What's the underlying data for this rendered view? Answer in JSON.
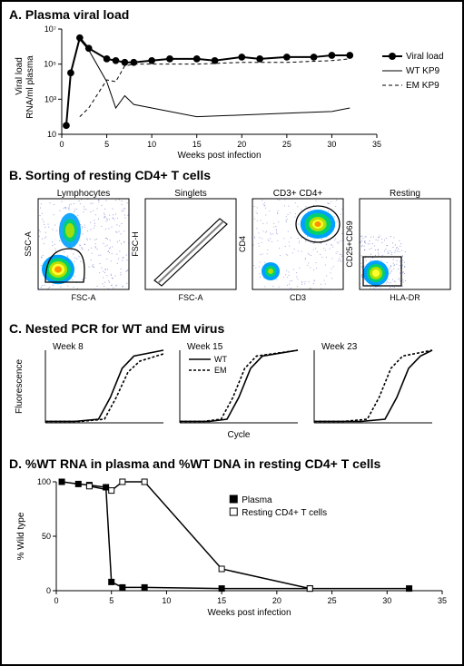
{
  "panelA": {
    "title": "A. Plasma viral load",
    "ylabel": "Viral load\nRNA/ml plasma",
    "xlabel": "Weeks post infection",
    "type": "line",
    "xlim": [
      0,
      35
    ],
    "ylim": [
      1,
      7
    ],
    "xtick_step": 5,
    "yticks": [
      1,
      3,
      5,
      7
    ],
    "ytick_labels": [
      "10",
      "10³",
      "10⁵",
      "10⁷"
    ],
    "background_color": "#ffffff",
    "axis_color": "#000000",
    "series": [
      {
        "name": "Viral load",
        "marker": "circle-filled",
        "marker_size": 5,
        "color": "#000000",
        "line_width": 2,
        "dash": "solid",
        "x": [
          0.5,
          1,
          2,
          3,
          5,
          6,
          7,
          8,
          10,
          12,
          15,
          17,
          20,
          22,
          25,
          28,
          30,
          32
        ],
        "y": [
          1.5,
          4.5,
          6.5,
          5.9,
          5.3,
          5.2,
          5.1,
          5.1,
          5.2,
          5.3,
          5.3,
          5.2,
          5.4,
          5.3,
          5.4,
          5.4,
          5.5,
          5.5
        ]
      },
      {
        "name": "WT KP9",
        "color": "#000000",
        "line_width": 1,
        "dash": "solid",
        "x": [
          0.5,
          1,
          2,
          3,
          5,
          6,
          7,
          8,
          10,
          15,
          20,
          25,
          30,
          32
        ],
        "y": [
          1.5,
          4.5,
          6.4,
          5.8,
          4.0,
          2.5,
          3.2,
          2.7,
          2.5,
          2.0,
          2.1,
          2.2,
          2.3,
          2.5
        ]
      },
      {
        "name": "EM KP9",
        "color": "#000000",
        "line_width": 1,
        "dash": "dashed",
        "x": [
          2,
          3,
          5,
          6,
          7,
          8,
          10,
          15,
          20,
          25,
          30,
          32
        ],
        "y": [
          2.0,
          2.5,
          4.1,
          4.0,
          4.9,
          5.0,
          5.0,
          5.0,
          5.1,
          5.1,
          5.2,
          5.3
        ]
      }
    ],
    "legend": [
      "Viral load",
      "WT KP9",
      "EM KP9"
    ],
    "label_fontsize": 10,
    "tick_fontsize": 9
  },
  "panelB": {
    "title": "B. Sorting of resting CD4+ T cells",
    "plots": [
      {
        "title": "Lymphocytes",
        "xlabel": "FSC-A",
        "ylabel": "SSC-A",
        "type": "density"
      },
      {
        "title": "Singlets",
        "xlabel": "FSC-A",
        "ylabel": "FSC-H",
        "type": "gate-diag"
      },
      {
        "title": "CD3+ CD4+",
        "xlabel": "CD3",
        "ylabel": "CD4",
        "type": "density2"
      },
      {
        "title": "Resting",
        "xlabel": "HLA-DR",
        "ylabel": "CD25+CD69",
        "type": "density3"
      }
    ],
    "density_palette": [
      "#0018a8",
      "#00a0ff",
      "#00d070",
      "#b0e000",
      "#ffff30",
      "#ff9000",
      "#ff2000"
    ],
    "title_fontsize": 10,
    "label_fontsize": 9
  },
  "panelC": {
    "title": "C. Nested PCR for WT and EM virus",
    "ylabel": "Fluorescence",
    "xlabel": "Cycle",
    "subplots": [
      "Week 8",
      "Week 15",
      "Week 23"
    ],
    "legend": [
      "WT",
      "EM"
    ],
    "type": "line",
    "line_color": "#000000",
    "line_width": 1.5,
    "curves": {
      "week8": {
        "wt": {
          "x": [
            0,
            10,
            18,
            22,
            26,
            30,
            40
          ],
          "y": [
            0.02,
            0.02,
            0.05,
            0.35,
            0.75,
            0.92,
            1.0
          ]
        },
        "em": {
          "x": [
            0,
            12,
            20,
            24,
            28,
            32,
            40
          ],
          "y": [
            0.02,
            0.02,
            0.05,
            0.35,
            0.7,
            0.85,
            0.95
          ]
        }
      },
      "week15": {
        "wt": {
          "x": [
            0,
            10,
            16,
            20,
            24,
            28,
            40
          ],
          "y": [
            0.02,
            0.02,
            0.05,
            0.35,
            0.75,
            0.92,
            1.0
          ]
        },
        "em": {
          "x": [
            0,
            8,
            14,
            18,
            22,
            26,
            40
          ],
          "y": [
            0.02,
            0.02,
            0.05,
            0.35,
            0.75,
            0.92,
            1.0
          ]
        }
      },
      "week23": {
        "wt": {
          "x": [
            0,
            16,
            24,
            28,
            32,
            36,
            40
          ],
          "y": [
            0.02,
            0.02,
            0.05,
            0.35,
            0.75,
            0.92,
            1.0
          ]
        },
        "em": {
          "x": [
            0,
            10,
            18,
            22,
            26,
            30,
            40
          ],
          "y": [
            0.02,
            0.02,
            0.05,
            0.35,
            0.75,
            0.92,
            1.0
          ]
        }
      }
    },
    "title_fontsize": 10,
    "label_fontsize": 9
  },
  "panelD": {
    "title": "D. %WT RNA in plasma and %WT DNA in resting CD4+ T cells",
    "ylabel": "% Wild type",
    "xlabel": "Weeks post infection",
    "type": "line",
    "xlim": [
      0,
      35
    ],
    "ylim": [
      0,
      100
    ],
    "xtick_step": 5,
    "ytick_step": 50,
    "background_color": "#ffffff",
    "series": [
      {
        "name": "Plasma",
        "marker": "square-filled",
        "marker_size": 6,
        "color": "#000000",
        "line_width": 1.5,
        "x": [
          0.5,
          2,
          3,
          4.5,
          5,
          6,
          8,
          15,
          23,
          32
        ],
        "y": [
          100,
          98,
          97,
          95,
          8,
          3,
          3,
          2,
          2,
          2
        ]
      },
      {
        "name": "Resting CD4+ T cells",
        "marker": "square-open",
        "marker_size": 6,
        "color": "#000000",
        "line_width": 1.5,
        "x": [
          3,
          5,
          6,
          8,
          15,
          23
        ],
        "y": [
          96,
          92,
          100,
          100,
          20,
          2
        ]
      }
    ],
    "legend": [
      "Plasma",
      "Resting CD4+ T cells"
    ],
    "label_fontsize": 10,
    "tick_fontsize": 9
  }
}
